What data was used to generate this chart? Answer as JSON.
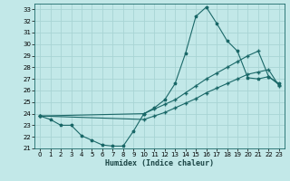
{
  "xlabel": "Humidex (Indice chaleur)",
  "bg_color": "#c2e8e8",
  "grid_color": "#a8d4d4",
  "line_color": "#1a6868",
  "xlim": [
    -0.5,
    23.5
  ],
  "ylim": [
    21,
    33.5
  ],
  "yticks": [
    21,
    22,
    23,
    24,
    25,
    26,
    27,
    28,
    29,
    30,
    31,
    32,
    33
  ],
  "xticks": [
    0,
    1,
    2,
    3,
    4,
    5,
    6,
    7,
    8,
    9,
    10,
    11,
    12,
    13,
    14,
    15,
    16,
    17,
    18,
    19,
    20,
    21,
    22,
    23
  ],
  "line1_x": [
    0,
    1,
    2,
    3,
    4,
    5,
    6,
    7,
    8,
    9,
    10,
    11,
    12,
    13,
    14,
    15,
    16,
    17,
    18,
    19,
    20,
    21,
    22,
    23
  ],
  "line1_y": [
    23.8,
    23.5,
    23.0,
    23.0,
    22.1,
    21.7,
    21.3,
    21.2,
    21.2,
    22.5,
    24.0,
    24.5,
    25.2,
    26.6,
    29.2,
    32.4,
    33.2,
    31.8,
    30.3,
    29.4,
    27.1,
    27.0,
    27.2,
    26.6
  ],
  "line2_x": [
    0,
    10,
    11,
    12,
    13,
    14,
    15,
    16,
    17,
    18,
    19,
    20,
    21,
    22,
    23
  ],
  "line2_y": [
    23.8,
    24.0,
    24.4,
    24.8,
    25.2,
    25.8,
    26.4,
    27.0,
    27.5,
    28.0,
    28.5,
    29.0,
    29.4,
    27.2,
    26.5
  ],
  "line3_x": [
    0,
    10,
    11,
    12,
    13,
    14,
    15,
    16,
    17,
    18,
    19,
    20,
    21,
    22,
    23
  ],
  "line3_y": [
    23.8,
    23.5,
    23.8,
    24.1,
    24.5,
    24.9,
    25.3,
    25.8,
    26.2,
    26.6,
    27.0,
    27.4,
    27.6,
    27.8,
    26.4
  ]
}
